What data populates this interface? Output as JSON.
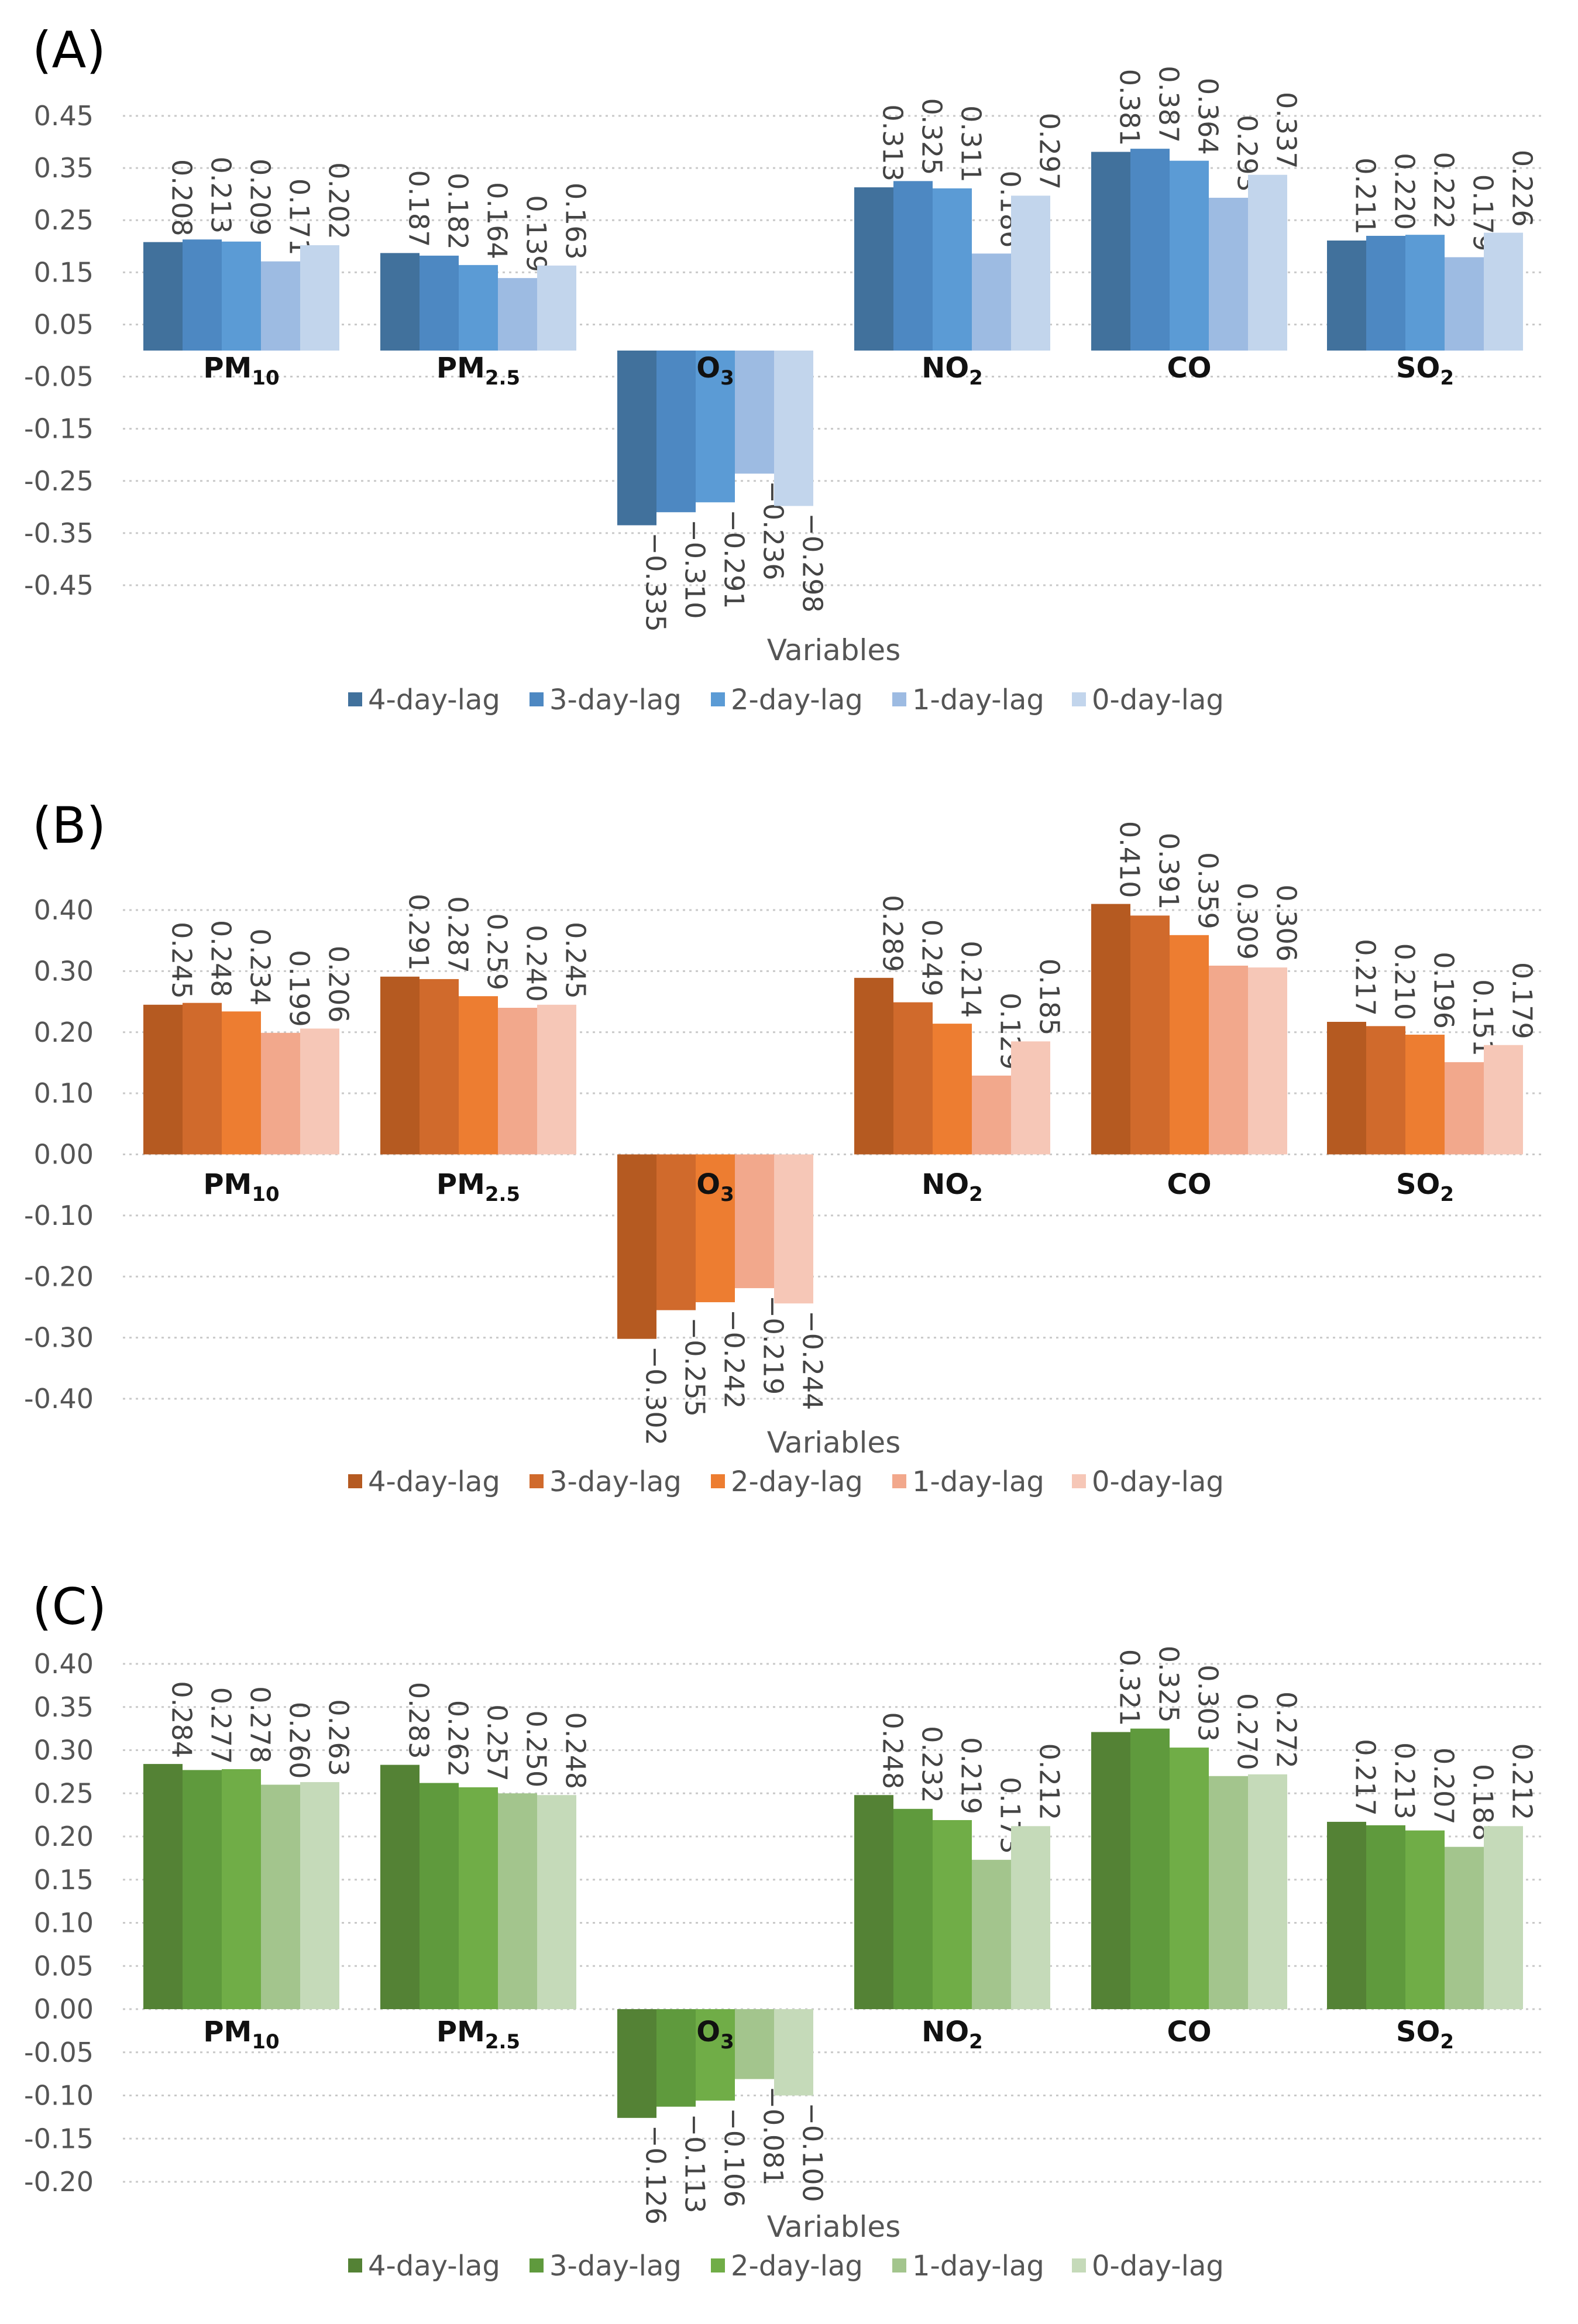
{
  "chart_data": [
    {
      "type": "bar",
      "panel_label": "(A)",
      "xlabel": "Variables",
      "ylabel": "",
      "grid": true,
      "legend_position": "bottom",
      "ylim": [
        -0.45,
        0.45
      ],
      "yticks": [
        "0.45",
        "0.35",
        "0.25",
        "0.15",
        "0.05",
        "-0.05",
        "-0.15",
        "-0.25",
        "-0.35",
        "-0.45"
      ],
      "categories": [
        {
          "base": "PM",
          "sub": "10"
        },
        {
          "base": "PM",
          "sub": "2.5"
        },
        {
          "base": "O",
          "sub": "3"
        },
        {
          "base": "NO",
          "sub": "2"
        },
        {
          "base": "CO",
          "sub": ""
        },
        {
          "base": "SO",
          "sub": "2"
        }
      ],
      "colors": [
        "#41719c",
        "#4d88c2",
        "#5b9bd5",
        "#9dbbe2",
        "#c2d5ec"
      ],
      "series": [
        {
          "name": "4-day-lag",
          "values": [
            0.208,
            0.187,
            -0.335,
            0.313,
            0.381,
            0.211
          ],
          "labels": [
            "0.208",
            "0.187",
            "−0.335",
            "0.313",
            "0.381",
            "0.211"
          ]
        },
        {
          "name": "3-day-lag",
          "values": [
            0.213,
            0.182,
            -0.31,
            0.325,
            0.387,
            0.22
          ],
          "labels": [
            "0.213",
            "0.182",
            "−0.310",
            "0.325",
            "0.387",
            "0.220"
          ]
        },
        {
          "name": "2-day-lag",
          "values": [
            0.209,
            0.164,
            -0.291,
            0.311,
            0.364,
            0.222
          ],
          "labels": [
            "0.209",
            "0.164",
            "−0.291",
            "0.311",
            "0.364",
            "0.222"
          ]
        },
        {
          "name": "1-day-lag",
          "values": [
            0.171,
            0.139,
            -0.236,
            0.186,
            0.293,
            0.179
          ],
          "labels": [
            "0.171",
            "0.139",
            "−0.236",
            "0.186",
            "0.293",
            "0.179"
          ]
        },
        {
          "name": "0-day-lag",
          "values": [
            0.202,
            0.163,
            -0.298,
            0.297,
            0.337,
            0.226
          ],
          "labels": [
            "0.202",
            "0.163",
            "−0.298",
            "0.297",
            "0.337",
            "0.226"
          ]
        }
      ]
    },
    {
      "type": "bar",
      "panel_label": "(B)",
      "xlabel": "Variables",
      "ylabel": "",
      "grid": true,
      "legend_position": "bottom",
      "ylim": [
        -0.4,
        0.4
      ],
      "yticks": [
        "0.40",
        "0.30",
        "0.20",
        "0.10",
        "0.00",
        "-0.10",
        "-0.20",
        "-0.30",
        "-0.40"
      ],
      "categories": [
        {
          "base": "PM",
          "sub": "10"
        },
        {
          "base": "PM",
          "sub": "2.5"
        },
        {
          "base": "O",
          "sub": "3"
        },
        {
          "base": "NO",
          "sub": "2"
        },
        {
          "base": "CO",
          "sub": ""
        },
        {
          "base": "SO",
          "sub": "2"
        }
      ],
      "colors": [
        "#b55a21",
        "#d06a2c",
        "#ed7d31",
        "#f2a88c",
        "#f6c7b7"
      ],
      "series": [
        {
          "name": "4-day-lag",
          "values": [
            0.245,
            0.291,
            -0.302,
            0.289,
            0.41,
            0.217
          ],
          "labels": [
            "0.245",
            "0.291",
            "−0.302",
            "0.289",
            "0.410",
            "0.217"
          ]
        },
        {
          "name": "3-day-lag",
          "values": [
            0.248,
            0.287,
            -0.255,
            0.249,
            0.391,
            0.21
          ],
          "labels": [
            "0.248",
            "0.287",
            "−0.255",
            "0.249",
            "0.391",
            "0.210"
          ]
        },
        {
          "name": "2-day-lag",
          "values": [
            0.234,
            0.259,
            -0.242,
            0.214,
            0.359,
            0.196
          ],
          "labels": [
            "0.234",
            "0.259",
            "−0.242",
            "0.214",
            "0.359",
            "0.196"
          ]
        },
        {
          "name": "1-day-lag",
          "values": [
            0.199,
            0.24,
            -0.219,
            0.129,
            0.309,
            0.151
          ],
          "labels": [
            "0.199",
            "0.240",
            "−0.219",
            "0.129",
            "0.309",
            "0.151"
          ]
        },
        {
          "name": "0-day-lag",
          "values": [
            0.206,
            0.245,
            -0.244,
            0.185,
            0.306,
            0.179
          ],
          "labels": [
            "0.206",
            "0.245",
            "−0.244",
            "0.185",
            "0.306",
            "0.179"
          ]
        }
      ]
    },
    {
      "type": "bar",
      "panel_label": "(C)",
      "xlabel": "Variables",
      "ylabel": "",
      "grid": true,
      "legend_position": "bottom",
      "ylim": [
        -0.2,
        0.4
      ],
      "yticks": [
        "0.40",
        "0.35",
        "0.30",
        "0.25",
        "0.20",
        "0.15",
        "0.10",
        "0.05",
        "0.00",
        "-0.05",
        "-0.10",
        "-0.15",
        "-0.20"
      ],
      "categories": [
        {
          "base": "PM",
          "sub": "10"
        },
        {
          "base": "PM",
          "sub": "2.5"
        },
        {
          "base": "O",
          "sub": "3"
        },
        {
          "base": "NO",
          "sub": "2"
        },
        {
          "base": "CO",
          "sub": ""
        },
        {
          "base": "SO",
          "sub": "2"
        }
      ],
      "colors": [
        "#548235",
        "#5f9a3d",
        "#70ad47",
        "#a3c58d",
        "#c5dab9"
      ],
      "series": [
        {
          "name": "4-day-lag",
          "values": [
            0.284,
            0.283,
            -0.126,
            0.248,
            0.321,
            0.217
          ],
          "labels": [
            "0.284",
            "0.283",
            "−0.126",
            "0.248",
            "0.321",
            "0.217"
          ]
        },
        {
          "name": "3-day-lag",
          "values": [
            0.277,
            0.262,
            -0.113,
            0.232,
            0.325,
            0.213
          ],
          "labels": [
            "0.277",
            "0.262",
            "−0.113",
            "0.232",
            "0.325",
            "0.213"
          ]
        },
        {
          "name": "2-day-lag",
          "values": [
            0.278,
            0.257,
            -0.106,
            0.219,
            0.303,
            0.207
          ],
          "labels": [
            "0.278",
            "0.257",
            "−0.106",
            "0.219",
            "0.303",
            "0.207"
          ]
        },
        {
          "name": "1-day-lag",
          "values": [
            0.26,
            0.25,
            -0.081,
            0.173,
            0.27,
            0.188
          ],
          "labels": [
            "0.260",
            "0.250",
            "−0.081",
            "0.173",
            "0.270",
            "0.188"
          ]
        },
        {
          "name": "0-day-lag",
          "values": [
            0.263,
            0.248,
            -0.1,
            0.212,
            0.272,
            0.212
          ],
          "labels": [
            "0.263",
            "0.248",
            "−0.100",
            "0.212",
            "0.272",
            "0.212"
          ]
        }
      ]
    }
  ]
}
